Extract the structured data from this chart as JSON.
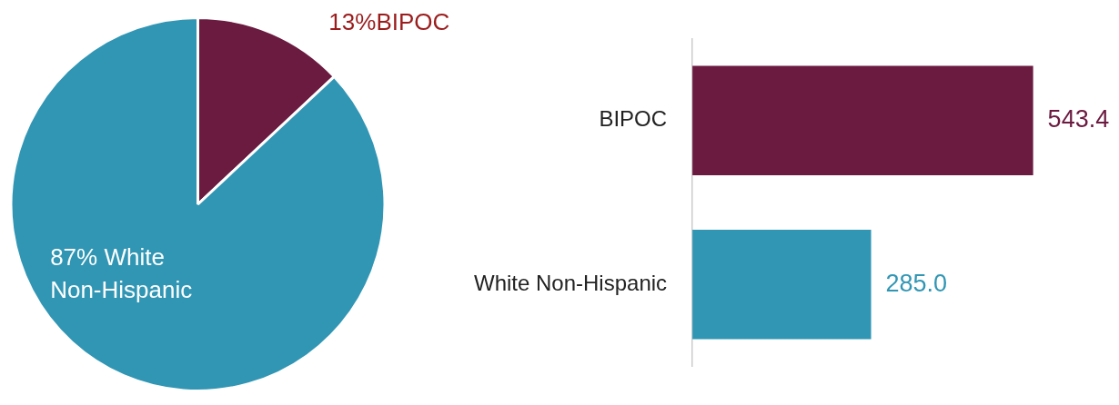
{
  "chart_data": [
    {
      "type": "pie",
      "categories": [
        "BIPOC",
        "White Non-Hispanic"
      ],
      "values": [
        13,
        87
      ],
      "colors": [
        "#6b1a40",
        "#3196b4"
      ],
      "value_labels": [
        "13%",
        "87%"
      ],
      "legend": false
    },
    {
      "type": "bar",
      "orientation": "horizontal",
      "categories": [
        "BIPOC",
        "White Non-Hispanic"
      ],
      "values": [
        543.4,
        285.0
      ],
      "colors": [
        "#6b1a40",
        "#3196b4"
      ],
      "value_labels": [
        "543.4",
        "285.0"
      ],
      "tick_labels": "y",
      "legend": false
    }
  ]
}
